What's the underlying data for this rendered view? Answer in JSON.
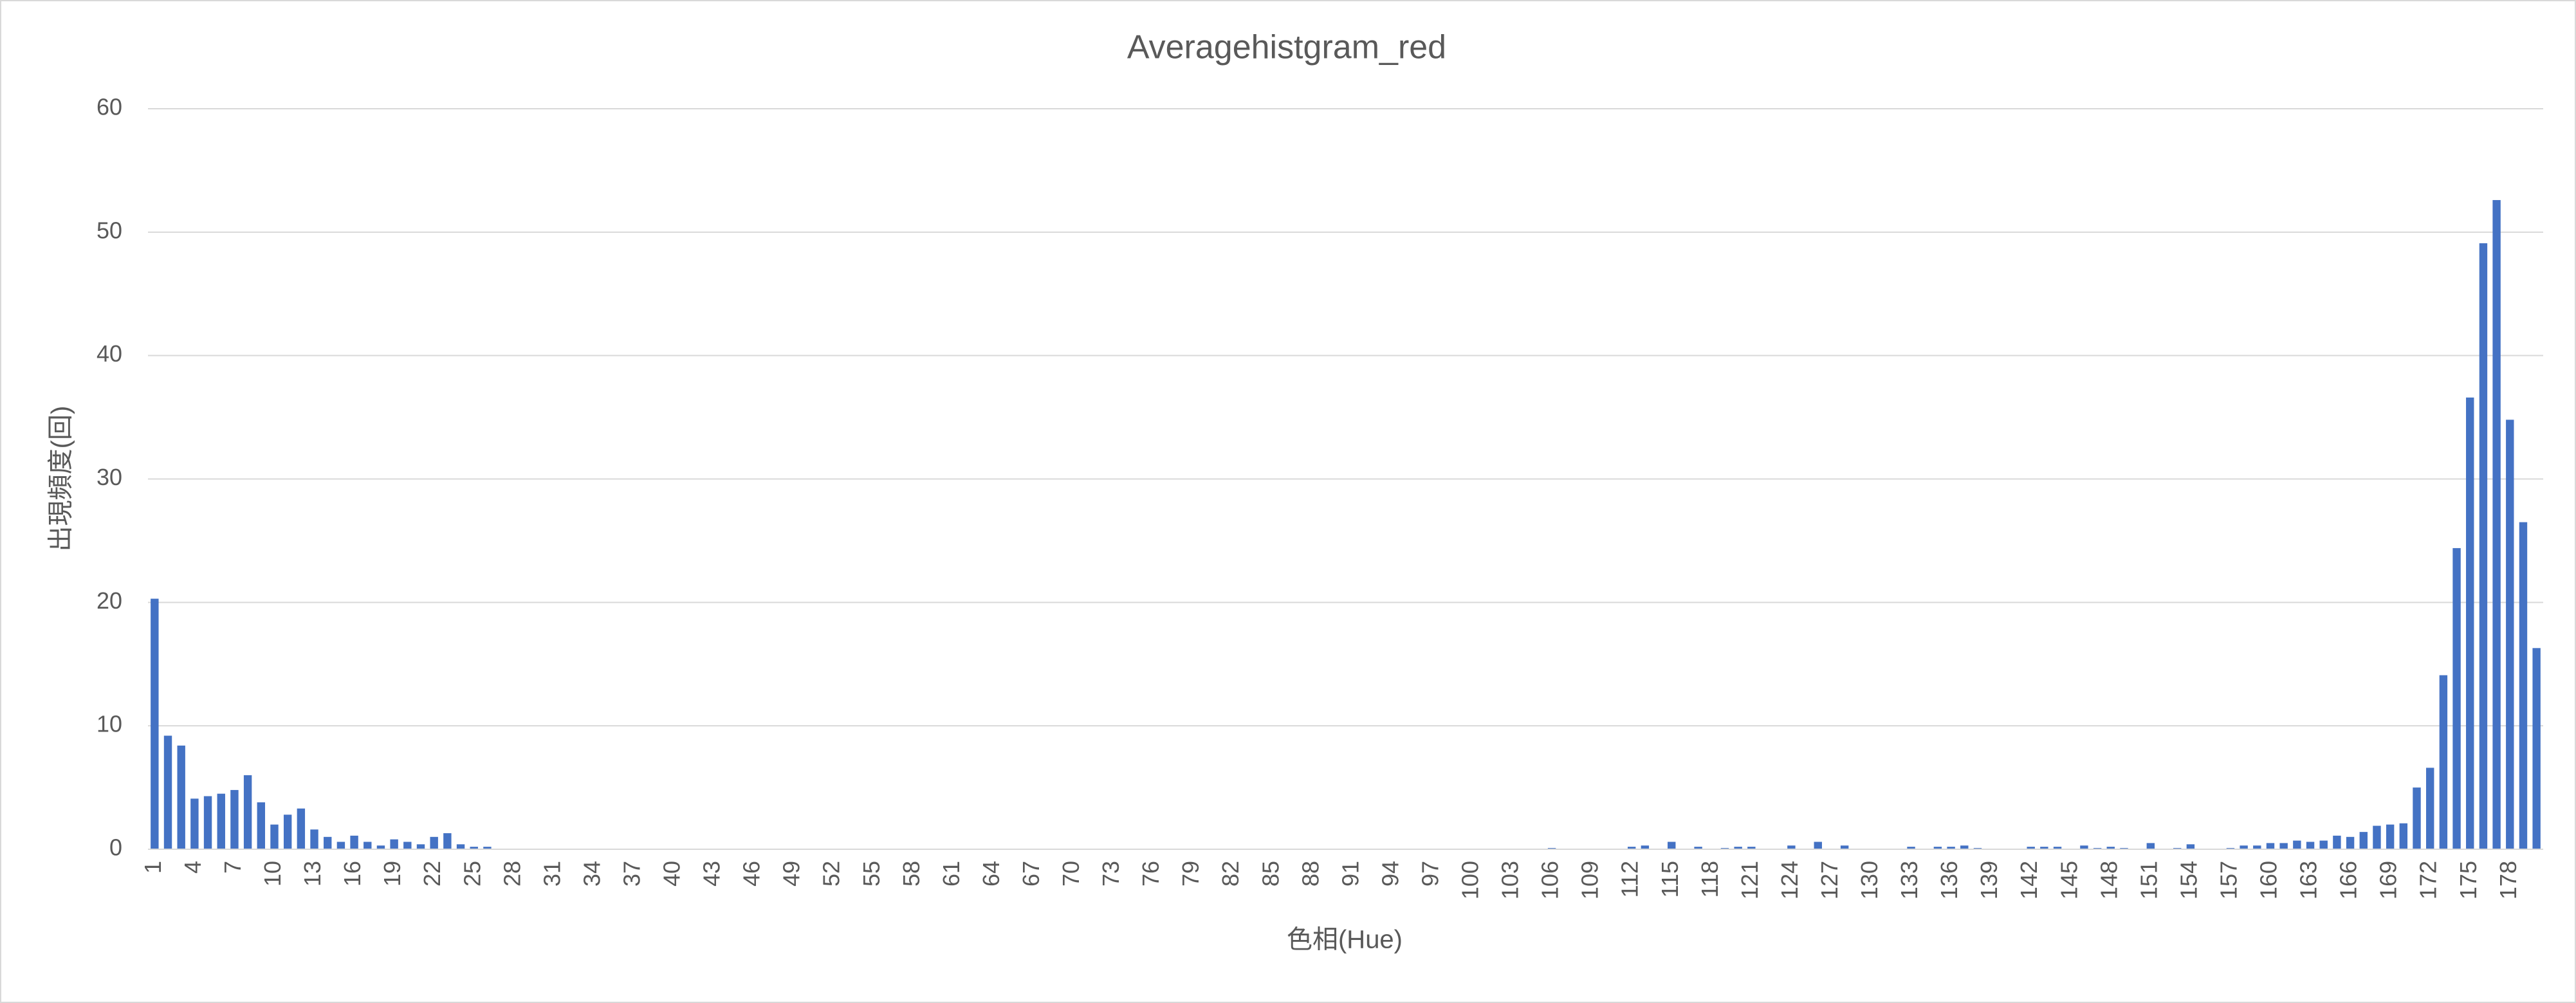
{
  "chart_data": {
    "type": "bar",
    "title": "Averagehistgram_red",
    "x_label": "色相(Hue)",
    "y_label": "出現頻度(回)",
    "categories": [
      "1",
      null,
      null,
      "4",
      null,
      null,
      "7",
      null,
      null,
      "10",
      null,
      null,
      "13",
      null,
      null,
      "16",
      null,
      null,
      "19",
      null,
      null,
      "22",
      null,
      null,
      "25",
      null,
      null,
      "28",
      null,
      null,
      "31",
      null,
      null,
      "34",
      null,
      null,
      "37",
      null,
      null,
      "40",
      null,
      null,
      "43",
      null,
      null,
      "46",
      null,
      null,
      "49",
      null,
      null,
      "52",
      null,
      null,
      "55",
      null,
      null,
      "58",
      null,
      null,
      "61",
      null,
      null,
      "64",
      null,
      null,
      "67",
      null,
      null,
      "70",
      null,
      null,
      "73",
      null,
      null,
      "76",
      null,
      null,
      "79",
      null,
      null,
      "82",
      null,
      null,
      "85",
      null,
      null,
      "88",
      null,
      null,
      "91",
      null,
      null,
      "94",
      null,
      null,
      "97",
      null,
      null,
      "100",
      null,
      null,
      "103",
      null,
      null,
      "106",
      null,
      null,
      "109",
      null,
      null,
      "112",
      null,
      null,
      "115",
      null,
      null,
      "118",
      null,
      null,
      "121",
      null,
      null,
      "124",
      null,
      null,
      "127",
      null,
      null,
      "130",
      null,
      null,
      "133",
      null,
      null,
      "136",
      null,
      null,
      "139",
      null,
      null,
      "142",
      null,
      null,
      "145",
      null,
      null,
      "148",
      null,
      null,
      "151",
      null,
      null,
      "154",
      null,
      null,
      "157",
      null,
      null,
      "160",
      null,
      null,
      "163",
      null,
      null,
      "166",
      null,
      null,
      "169",
      null,
      null,
      "172",
      null,
      null,
      "175",
      null,
      null,
      "178",
      null,
      null
    ],
    "values": [
      20.3,
      9.2,
      8.4,
      4.1,
      4.3,
      4.5,
      4.8,
      6.0,
      3.8,
      2.0,
      2.8,
      3.3,
      1.6,
      1.0,
      0.6,
      1.1,
      0.6,
      0.3,
      0.8,
      0.6,
      0.4,
      1.0,
      1.3,
      0.4,
      0.2,
      0.2,
      0,
      0,
      0,
      0,
      0,
      0,
      0,
      0,
      0,
      0,
      0,
      0,
      0,
      0,
      0,
      0,
      0,
      0,
      0,
      0,
      0,
      0,
      0,
      0,
      0,
      0,
      0,
      0,
      0,
      0,
      0,
      0,
      0,
      0,
      0,
      0,
      0,
      0,
      0,
      0,
      0,
      0,
      0,
      0,
      0,
      0,
      0,
      0,
      0,
      0,
      0,
      0,
      0,
      0,
      0,
      0,
      0,
      0,
      0,
      0,
      0,
      0,
      0,
      0,
      0,
      0,
      0,
      0,
      0,
      0,
      0,
      0,
      0,
      0,
      0,
      0,
      0,
      0,
      0,
      0.1,
      0,
      0,
      0,
      0,
      0,
      0.2,
      0.3,
      0,
      0.6,
      0,
      0.2,
      0,
      0.1,
      0.2,
      0.2,
      0,
      0,
      0.3,
      0,
      0.6,
      0,
      0.3,
      0,
      0,
      0,
      0,
      0.2,
      0,
      0.2,
      0.2,
      0.3,
      0.1,
      0,
      0,
      0,
      0.2,
      0.2,
      0.2,
      0,
      0.3,
      0.1,
      0.2,
      0.1,
      0,
      0.5,
      0,
      0.1,
      0.4,
      0,
      0,
      0.1,
      0.3,
      0.3,
      0.5,
      0.5,
      0.7,
      0.6,
      0.7,
      1.1,
      1.0,
      1.4,
      1.9,
      2.0,
      2.1,
      5.0,
      6.6,
      14.1,
      24.4,
      36.6,
      49.1,
      52.6,
      34.8,
      26.5,
      16.3
    ],
    "color": "#4472c4",
    "ylim": [
      0,
      60
    ],
    "yticks": [
      0,
      10,
      20,
      30,
      40,
      50,
      60
    ],
    "grid": true
  }
}
